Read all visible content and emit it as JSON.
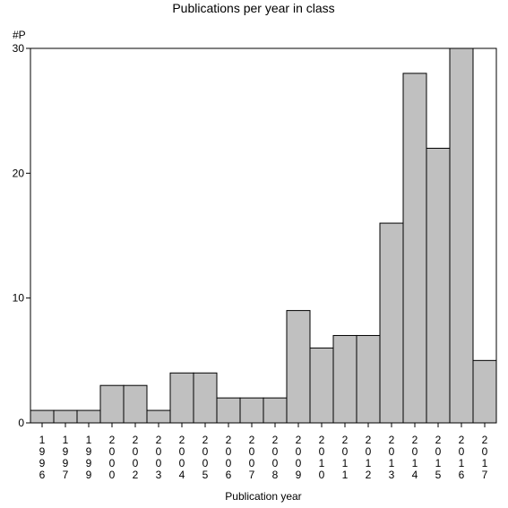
{
  "chart_data": {
    "type": "bar",
    "title": "Publications per year in class",
    "xlabel": "Publication year",
    "ylabel": "#P",
    "categories": [
      "1996",
      "1997",
      "1999",
      "2000",
      "2002",
      "2003",
      "2004",
      "2005",
      "2006",
      "2007",
      "2008",
      "2009",
      "2010",
      "2011",
      "2012",
      "2013",
      "2014",
      "2015",
      "2016",
      "2017"
    ],
    "values": [
      1,
      1,
      1,
      3,
      3,
      1,
      4,
      4,
      2,
      2,
      2,
      9,
      6,
      7,
      7,
      16,
      28,
      22,
      30,
      5
    ],
    "ylim": [
      0,
      30
    ],
    "yticks": [
      0,
      10,
      20,
      30
    ],
    "grid": false,
    "legend": "none",
    "bar_color": "#c0c0c0",
    "edge_color": "#000000"
  }
}
